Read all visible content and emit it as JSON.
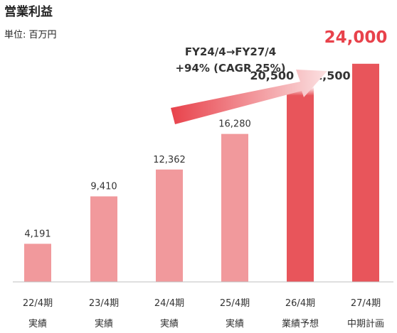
{
  "chart_data": {
    "type": "bar",
    "title": "営業利益",
    "unit_label": "単位: 百万円",
    "categories": [
      "22/4期",
      "23/4期",
      "24/4期",
      "25/4期",
      "26/4期",
      "27/4期"
    ],
    "sublabels": [
      "実績",
      "実績",
      "実績",
      "実績",
      "業績予想",
      "中期計画"
    ],
    "values": [
      4191,
      9410,
      12362,
      16280,
      21500,
      24000
    ],
    "data_labels": [
      "4,191",
      "9,410",
      "12,362",
      "16,280",
      "20,500 - 21,500",
      "24,000"
    ],
    "forecast_range": [
      20500,
      21500
    ],
    "ylim": [
      0,
      25000
    ],
    "grid": false,
    "colors": {
      "actual": "#f1999c",
      "forecast": "#e8555b",
      "target_text": "#e8424b",
      "arrow_start": "#e8424b",
      "arrow_end": "#fbe1e2"
    },
    "annotation": {
      "line1": "FY24/4→FY27/4",
      "line2": "+94% (CAGR 25%)"
    }
  }
}
